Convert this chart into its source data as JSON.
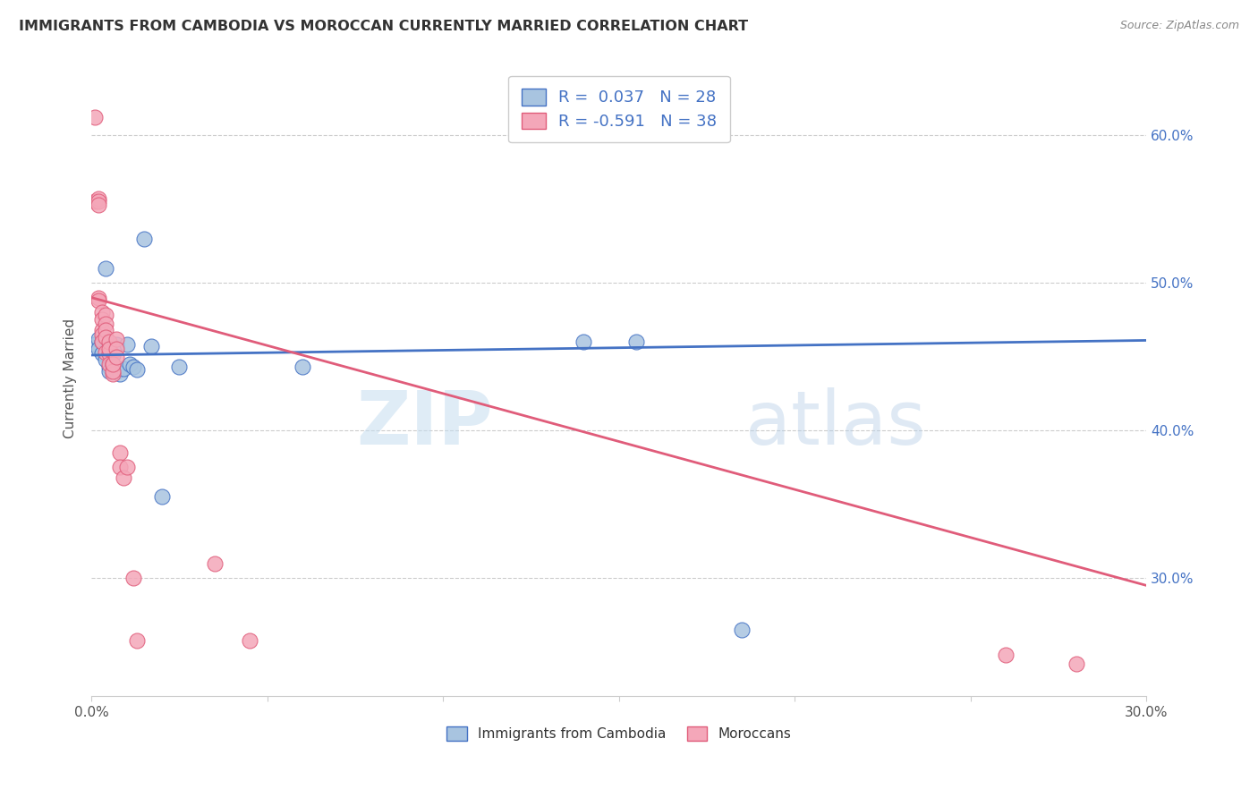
{
  "title": "IMMIGRANTS FROM CAMBODIA VS MOROCCAN CURRENTLY MARRIED CORRELATION CHART",
  "source": "Source: ZipAtlas.com",
  "ylabel": "Currently Married",
  "watermark": "ZIPatlas",
  "legend_label1": "Immigrants from Cambodia",
  "legend_label2": "Moroccans",
  "r1": 0.037,
  "n1": 28,
  "r2": -0.591,
  "n2": 38,
  "xlim": [
    0.0,
    0.3
  ],
  "ylim": [
    0.22,
    0.65
  ],
  "color_cambodia": "#a8c4e0",
  "color_morocco": "#f4a7b9",
  "line_color_cambodia": "#4472c4",
  "line_color_morocco": "#e05c7a",
  "background_color": "#ffffff",
  "grid_color": "#cccccc",
  "cambodia_points": [
    [
      0.001,
      0.458
    ],
    [
      0.002,
      0.462
    ],
    [
      0.002,
      0.455
    ],
    [
      0.003,
      0.46
    ],
    [
      0.003,
      0.452
    ],
    [
      0.004,
      0.448
    ],
    [
      0.004,
      0.51
    ],
    [
      0.005,
      0.443
    ],
    [
      0.005,
      0.44
    ],
    [
      0.005,
      0.458
    ],
    [
      0.006,
      0.451
    ],
    [
      0.006,
      0.443
    ],
    [
      0.007,
      0.44
    ],
    [
      0.007,
      0.458
    ],
    [
      0.008,
      0.438
    ],
    [
      0.009,
      0.442
    ],
    [
      0.01,
      0.458
    ],
    [
      0.011,
      0.445
    ],
    [
      0.012,
      0.443
    ],
    [
      0.013,
      0.441
    ],
    [
      0.015,
      0.53
    ],
    [
      0.017,
      0.457
    ],
    [
      0.02,
      0.355
    ],
    [
      0.025,
      0.443
    ],
    [
      0.06,
      0.443
    ],
    [
      0.14,
      0.46
    ],
    [
      0.155,
      0.46
    ],
    [
      0.185,
      0.265
    ]
  ],
  "morocco_points": [
    [
      0.001,
      0.612
    ],
    [
      0.001,
      0.555
    ],
    [
      0.002,
      0.557
    ],
    [
      0.002,
      0.555
    ],
    [
      0.002,
      0.553
    ],
    [
      0.002,
      0.49
    ],
    [
      0.002,
      0.488
    ],
    [
      0.003,
      0.48
    ],
    [
      0.003,
      0.475
    ],
    [
      0.003,
      0.468
    ],
    [
      0.003,
      0.465
    ],
    [
      0.003,
      0.46
    ],
    [
      0.004,
      0.478
    ],
    [
      0.004,
      0.472
    ],
    [
      0.004,
      0.468
    ],
    [
      0.004,
      0.453
    ],
    [
      0.004,
      0.463
    ],
    [
      0.005,
      0.452
    ],
    [
      0.005,
      0.46
    ],
    [
      0.005,
      0.445
    ],
    [
      0.005,
      0.455
    ],
    [
      0.006,
      0.445
    ],
    [
      0.006,
      0.438
    ],
    [
      0.006,
      0.44
    ],
    [
      0.006,
      0.445
    ],
    [
      0.007,
      0.462
    ],
    [
      0.007,
      0.455
    ],
    [
      0.007,
      0.45
    ],
    [
      0.008,
      0.385
    ],
    [
      0.008,
      0.375
    ],
    [
      0.009,
      0.368
    ],
    [
      0.01,
      0.375
    ],
    [
      0.012,
      0.3
    ],
    [
      0.013,
      0.258
    ],
    [
      0.035,
      0.31
    ],
    [
      0.045,
      0.258
    ],
    [
      0.26,
      0.248
    ],
    [
      0.28,
      0.242
    ]
  ]
}
